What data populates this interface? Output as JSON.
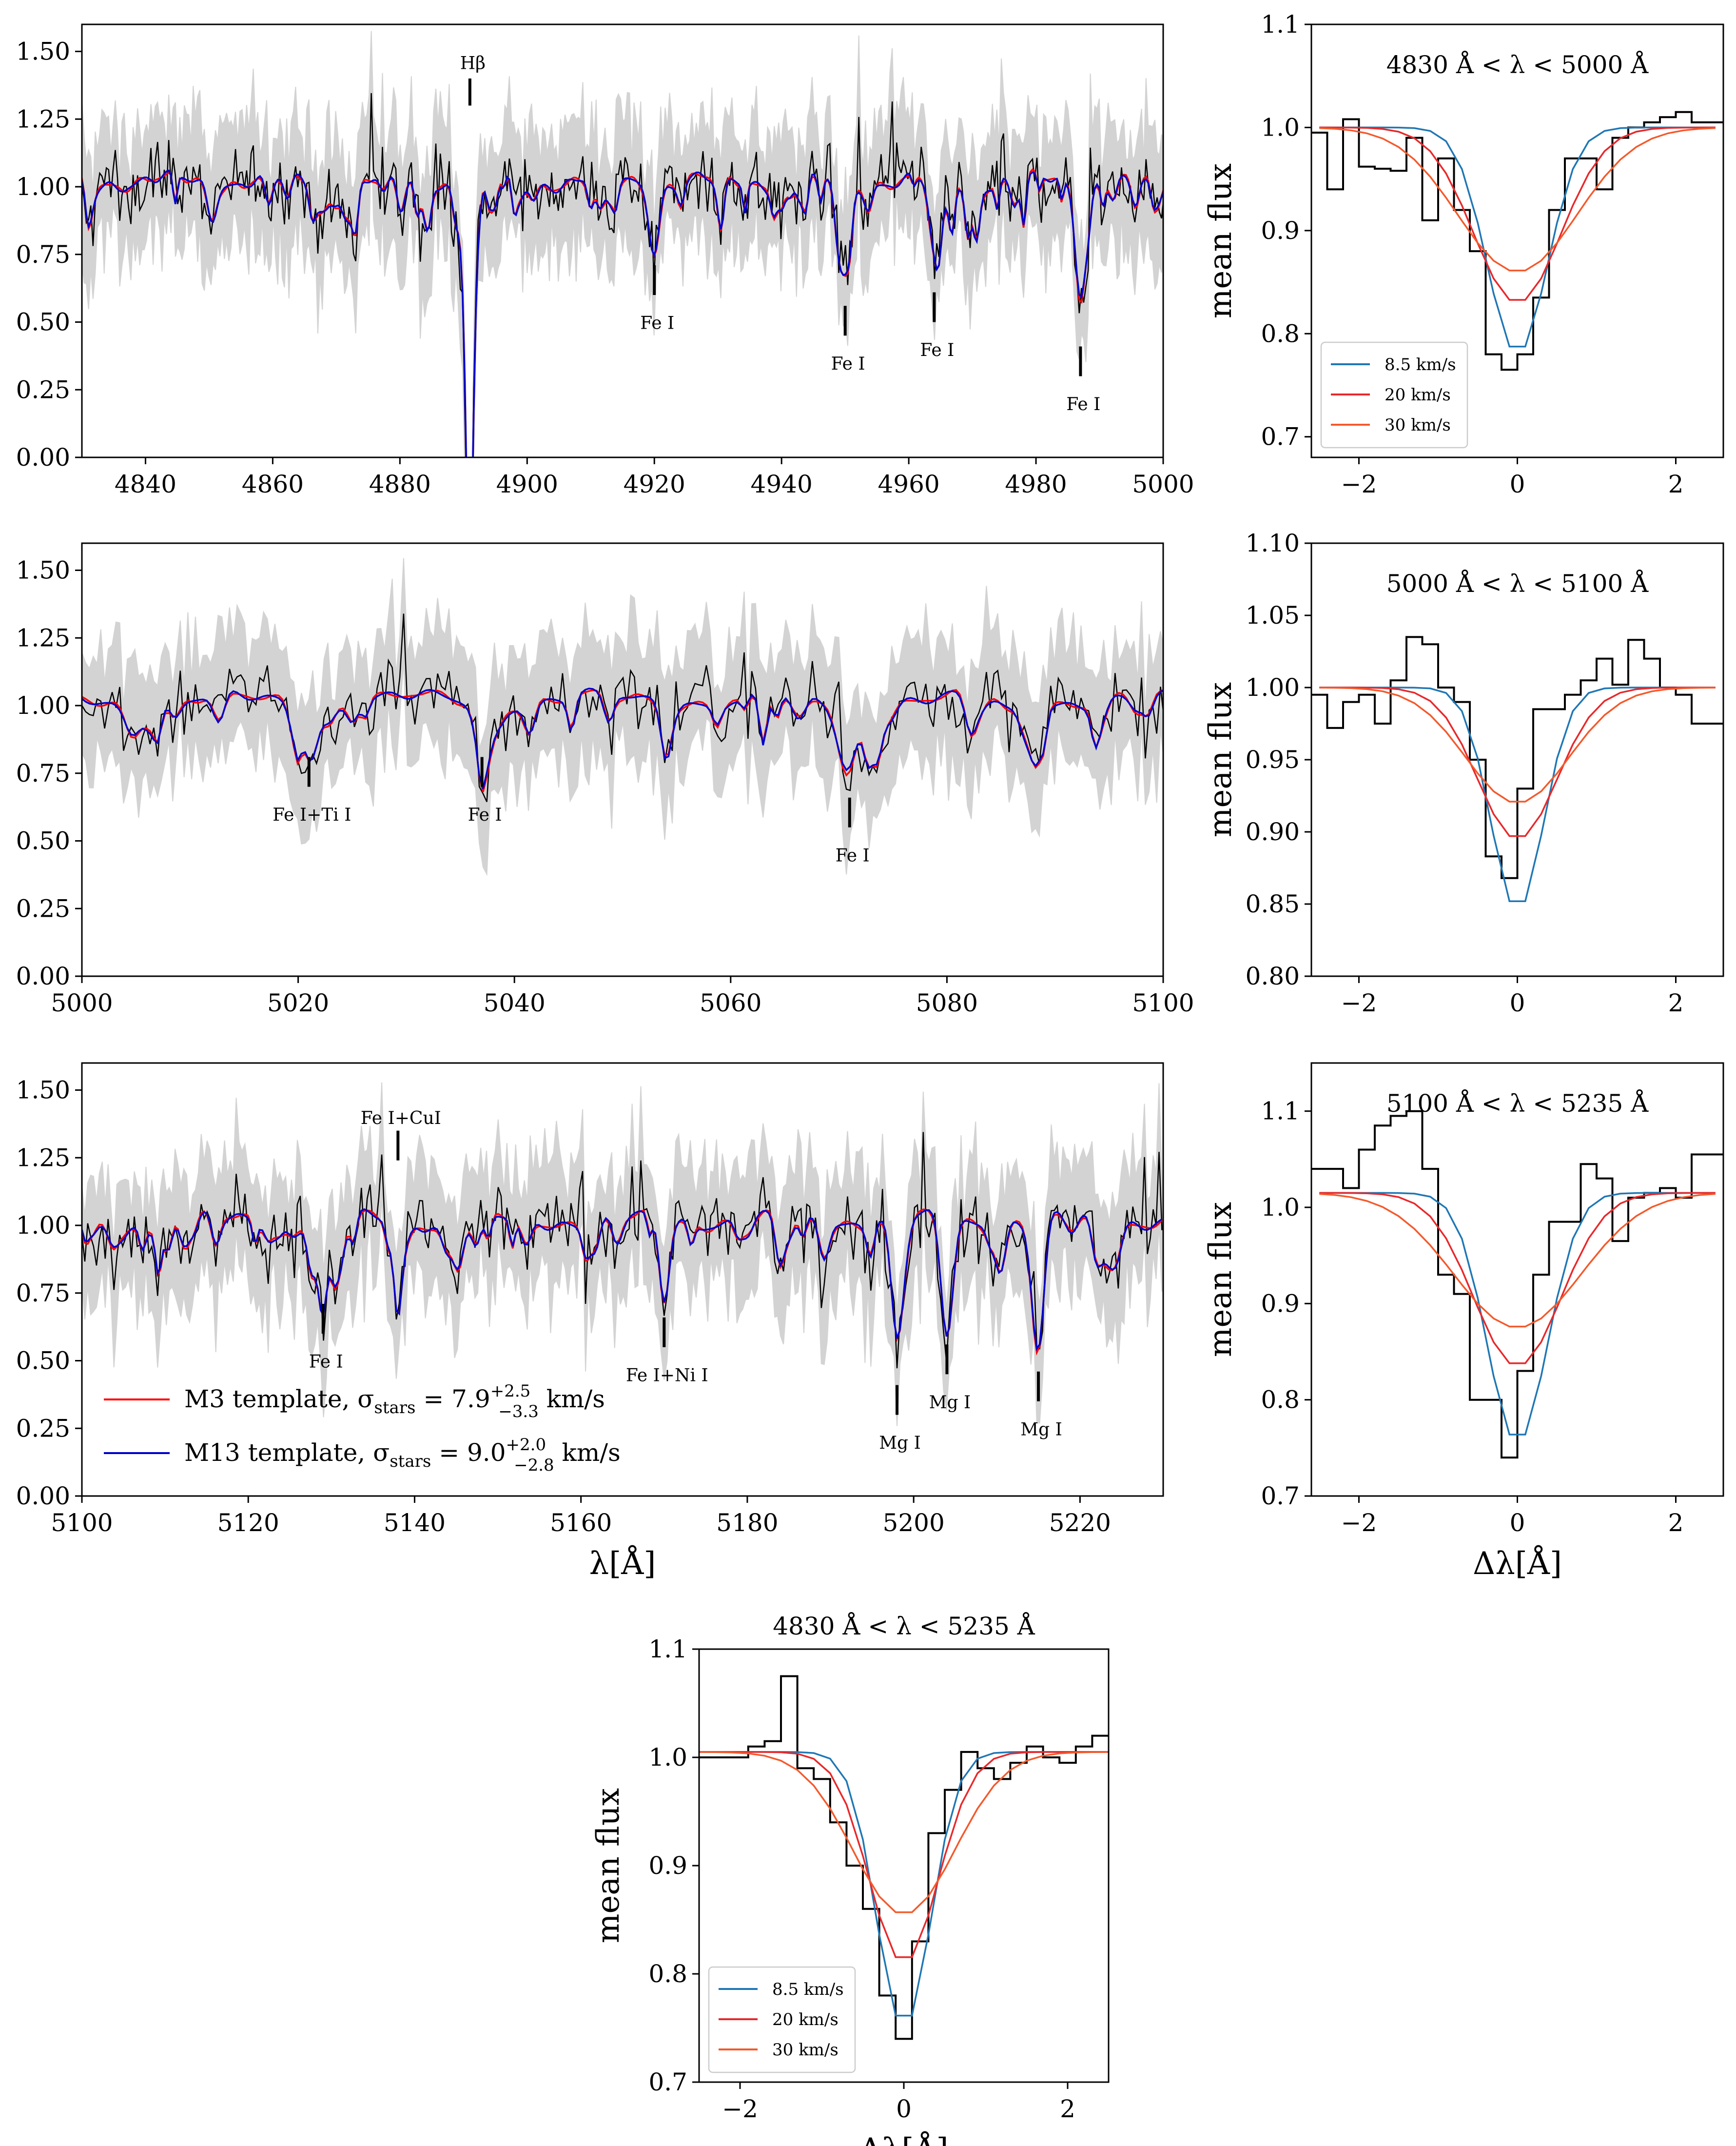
{
  "chart_data": [
    {
      "id": "spec1",
      "type": "line",
      "xlim": [
        4830,
        5000
      ],
      "ylim": [
        0,
        1.6
      ],
      "xticks": [
        4840,
        4860,
        4880,
        4900,
        4920,
        4940,
        4960,
        4980,
        5000
      ],
      "yticks": [
        0.0,
        0.25,
        0.5,
        0.75,
        1.0,
        1.25,
        1.5
      ],
      "xlabel": "",
      "lines": [
        {
          "x": 4891,
          "depth_m3": 0.78,
          "depth_m13": 0.78,
          "w": 0.9,
          "label": "Hβ",
          "label_y": 1.46,
          "tick": [
            1.3,
            1.4
          ],
          "pos": "above"
        },
        {
          "x": 4920,
          "depth_m3": 0.25,
          "depth_m13": 0.24,
          "w": 0.8,
          "label": "Fe I",
          "label_y": 0.5,
          "tick": [
            0.6,
            0.71
          ],
          "pos": "below"
        },
        {
          "x": 4950,
          "depth_m3": 0.31,
          "depth_m13": 0.3,
          "w": 0.8,
          "label": "Fe I",
          "label_y": 0.35,
          "tick": [
            0.45,
            0.56
          ],
          "pos": "below"
        },
        {
          "x": 4964,
          "depth_m3": 0.27,
          "depth_m13": 0.26,
          "w": 0.8,
          "label": "Fe I",
          "label_y": 0.4,
          "tick": [
            0.5,
            0.61
          ],
          "pos": "below"
        },
        {
          "x": 4987,
          "depth_m3": 0.41,
          "depth_m13": 0.4,
          "w": 0.8,
          "label": "Fe I",
          "label_y": 0.2,
          "tick": [
            0.3,
            0.41
          ],
          "pos": "below"
        }
      ]
    },
    {
      "id": "spec2",
      "type": "line",
      "xlim": [
        5000,
        5100
      ],
      "ylim": [
        0,
        1.6
      ],
      "xticks": [
        5000,
        5020,
        5040,
        5060,
        5080,
        5100
      ],
      "yticks": [
        0.0,
        0.25,
        0.5,
        0.75,
        1.0,
        1.25,
        1.5
      ],
      "xlabel": "",
      "lines": [
        {
          "x": 5021,
          "depth_m3": 0.16,
          "depth_m13": 0.15,
          "w": 0.6,
          "label": "Fe I+Ti I",
          "label_y": 0.6,
          "tick": [
            0.7,
            0.81
          ],
          "pos": "below"
        },
        {
          "x": 5037,
          "depth_m3": 0.2,
          "depth_m13": 0.19,
          "w": 0.6,
          "label": "Fe I",
          "label_y": 0.6,
          "tick": [
            0.7,
            0.81
          ],
          "pos": "below"
        },
        {
          "x": 5071,
          "depth_m3": 0.2,
          "depth_m13": 0.19,
          "w": 0.7,
          "label": "Fe I",
          "label_y": 0.45,
          "tick": [
            0.55,
            0.66
          ],
          "pos": "below"
        }
      ]
    },
    {
      "id": "spec3",
      "type": "line",
      "xlim": [
        5100,
        5230
      ],
      "ylim": [
        0,
        1.6
      ],
      "xticks": [
        5100,
        5120,
        5140,
        5160,
        5180,
        5200,
        5220
      ],
      "yticks": [
        0.0,
        0.25,
        0.5,
        0.75,
        1.0,
        1.25,
        1.5
      ],
      "xlabel": "λ[Å]",
      "lines": [
        {
          "x": 5129,
          "depth_m3": 0.22,
          "depth_m13": 0.21,
          "w": 0.6,
          "label": "Fe I",
          "label_y": 0.5,
          "tick": [
            0.6,
            0.71
          ],
          "pos": "below"
        },
        {
          "x": 5138,
          "depth_m3": 0.27,
          "depth_m13": 0.26,
          "w": 0.6,
          "label": "Fe I+CuI",
          "label_y": 1.4,
          "tick": [
            1.24,
            1.35
          ],
          "pos": "above"
        },
        {
          "x": 5170,
          "depth_m3": 0.3,
          "depth_m13": 0.3,
          "w": 0.6,
          "label": "Fe I+Ni I",
          "label_y": 0.45,
          "tick": [
            0.55,
            0.66
          ],
          "pos": "below"
        },
        {
          "x": 5198,
          "depth_m3": 0.45,
          "depth_m13": 0.44,
          "w": 0.7,
          "label": "Mg I",
          "label_y": 0.2,
          "tick": [
            0.3,
            0.41
          ],
          "pos": "below"
        },
        {
          "x": 5204,
          "depth_m3": 0.43,
          "depth_m13": 0.42,
          "w": 0.7,
          "label": "Mg I",
          "label_y": 0.35,
          "tick": [
            0.45,
            0.56
          ],
          "pos": "below"
        },
        {
          "x": 5215,
          "depth_m3": 0.47,
          "depth_m13": 0.46,
          "w": 0.7,
          "label": "Mg I",
          "label_y": 0.25,
          "tick": [
            0.35,
            0.46
          ],
          "pos": "below"
        }
      ],
      "legend": [
        {
          "label": "M3 template, σ_stars = 7.9 (+2.5 / −3.3) km/s",
          "color": "#ff0000",
          "main": "M3 template, σ",
          "sub": "stars",
          "val": " = 7.9",
          "sup": "+2.5",
          "inf": "−3.3",
          "unit": " km/s"
        },
        {
          "label": "M13 template, σ_stars = 9.0 (+2.0 / −2.8) km/s",
          "color": "#0000cc",
          "main": "M13 template, σ",
          "sub": "stars",
          "val": " = 9.0",
          "sup": "+2.0",
          "inf": "−2.8",
          "unit": " km/s"
        }
      ]
    },
    {
      "id": "prof1",
      "type": "line",
      "title": "4830 Å < λ < 5000 Å",
      "xlim": [
        -2.6,
        2.6
      ],
      "ylim": [
        0.68,
        1.1
      ],
      "xticks": [
        -2,
        0,
        2
      ],
      "yticks": [
        0.7,
        0.8,
        0.9,
        1.0,
        1.1
      ],
      "ylabel": "mean flux",
      "xlabel": "",
      "models": [
        {
          "name": "8.5 km/s",
          "color": "#1f77b4",
          "depth": 0.22,
          "sigma": 0.38,
          "base": 1.0
        },
        {
          "name": "20 km/s",
          "color": "#e8282b",
          "depth": 0.17,
          "sigma": 0.55,
          "base": 1.0
        },
        {
          "name": "30 km/s",
          "color": "#f4592b",
          "depth": 0.14,
          "sigma": 0.75,
          "base": 1.0
        }
      ],
      "observed_x": [
        -2.5,
        -2.3,
        -2.1,
        -1.9,
        -1.7,
        -1.5,
        -1.3,
        -1.1,
        -0.9,
        -0.7,
        -0.5,
        -0.3,
        -0.1,
        0.1,
        0.3,
        0.5,
        0.7,
        0.9,
        1.1,
        1.3,
        1.5,
        1.7,
        1.9,
        2.1,
        2.3,
        2.5
      ],
      "observed_y": [
        0.995,
        0.94,
        1.008,
        0.962,
        0.96,
        0.958,
        0.99,
        0.91,
        0.97,
        0.92,
        0.88,
        0.78,
        0.765,
        0.78,
        0.835,
        0.92,
        0.97,
        0.97,
        0.94,
        0.99,
        1.0,
        1.005,
        1.01,
        1.015,
        1.005,
        1.005
      ],
      "legend_pos": "lower-left"
    },
    {
      "id": "prof2",
      "type": "line",
      "title": "5000 Å < λ < 5100 Å",
      "xlim": [
        -2.6,
        2.6
      ],
      "ylim": [
        0.8,
        1.1
      ],
      "xticks": [
        -2,
        0,
        2
      ],
      "yticks": [
        0.8,
        0.85,
        0.9,
        0.95,
        1.0,
        1.05,
        1.1
      ],
      "ylabel": "mean flux",
      "xlabel": "",
      "models": [
        {
          "name": "8.5 km/s",
          "color": "#1f77b4",
          "depth": 0.155,
          "sigma": 0.33,
          "base": 1.0
        },
        {
          "name": "20 km/s",
          "color": "#e8282b",
          "depth": 0.105,
          "sigma": 0.5,
          "base": 1.0
        },
        {
          "name": "30 km/s",
          "color": "#f4592b",
          "depth": 0.08,
          "sigma": 0.65,
          "base": 1.0
        }
      ],
      "observed_x": [
        -2.5,
        -2.3,
        -2.1,
        -1.9,
        -1.7,
        -1.5,
        -1.3,
        -1.1,
        -0.9,
        -0.7,
        -0.5,
        -0.3,
        -0.1,
        0.1,
        0.3,
        0.5,
        0.7,
        0.9,
        1.1,
        1.3,
        1.5,
        1.7,
        1.9,
        2.1,
        2.3,
        2.5
      ],
      "observed_y": [
        0.995,
        0.972,
        0.99,
        0.995,
        0.975,
        1.005,
        1.035,
        1.03,
        1.0,
        0.99,
        0.95,
        0.883,
        0.868,
        0.93,
        0.985,
        0.985,
        0.995,
        1.005,
        1.02,
        1.002,
        1.033,
        1.02,
        1.0,
        0.995,
        0.975,
        0.975
      ],
      "legend_pos": "none"
    },
    {
      "id": "prof3",
      "type": "line",
      "title": "5100 Å < λ < 5235 Å",
      "xlim": [
        -2.6,
        2.6
      ],
      "ylim": [
        0.7,
        1.15
      ],
      "xticks": [
        -2,
        0,
        2
      ],
      "yticks": [
        0.7,
        0.8,
        0.9,
        1.0,
        1.1
      ],
      "ylabel": "mean flux",
      "xlabel": "Δλ[Å]",
      "models": [
        {
          "name": "8.5 km/s",
          "color": "#1f77b4",
          "depth": 0.26,
          "sigma": 0.38,
          "base": 1.015
        },
        {
          "name": "20 km/s",
          "color": "#e8282b",
          "depth": 0.18,
          "sigma": 0.55,
          "base": 1.015
        },
        {
          "name": "30 km/s",
          "color": "#f4592b",
          "depth": 0.14,
          "sigma": 0.8,
          "base": 1.015
        }
      ],
      "observed_x": [
        -2.5,
        -2.3,
        -2.1,
        -1.9,
        -1.7,
        -1.5,
        -1.3,
        -1.1,
        -0.9,
        -0.7,
        -0.5,
        -0.3,
        -0.1,
        0.1,
        0.3,
        0.5,
        0.7,
        0.9,
        1.1,
        1.3,
        1.5,
        1.7,
        1.9,
        2.1,
        2.3,
        2.5
      ],
      "observed_y": [
        1.04,
        1.04,
        1.02,
        1.06,
        1.085,
        1.095,
        1.1,
        1.04,
        0.93,
        0.91,
        0.8,
        0.8,
        0.74,
        0.83,
        0.93,
        0.985,
        0.985,
        1.045,
        1.03,
        0.965,
        1.01,
        1.015,
        1.02,
        1.01,
        1.055,
        1.055
      ],
      "legend_pos": "none"
    },
    {
      "id": "prof4",
      "type": "line",
      "title": "4830 Å < λ < 5235 Å",
      "xlim": [
        -2.5,
        2.5
      ],
      "ylim": [
        0.7,
        1.1
      ],
      "xticks": [
        -2,
        0,
        2
      ],
      "yticks": [
        0.7,
        0.8,
        0.9,
        1.0,
        1.1
      ],
      "ylabel": "mean flux",
      "xlabel": "Δλ[Å]",
      "models": [
        {
          "name": "8.5 km/s",
          "color": "#1f77b4",
          "depth": 0.255,
          "sigma": 0.33,
          "base": 1.005
        },
        {
          "name": "20 km/s",
          "color": "#e8282b",
          "depth": 0.195,
          "sigma": 0.42,
          "base": 1.005
        },
        {
          "name": "30 km/s",
          "color": "#f4592b",
          "depth": 0.15,
          "sigma": 0.62,
          "base": 1.005
        }
      ],
      "observed_x": [
        -2.4,
        -2.2,
        -2.0,
        -1.8,
        -1.6,
        -1.4,
        -1.2,
        -1.0,
        -0.8,
        -0.6,
        -0.4,
        -0.2,
        0.0,
        0.2,
        0.4,
        0.6,
        0.8,
        1.0,
        1.2,
        1.4,
        1.6,
        1.8,
        2.0,
        2.2,
        2.4
      ],
      "observed_y": [
        1.0,
        1.0,
        1.0,
        1.01,
        1.015,
        1.075,
        0.99,
        0.98,
        0.94,
        0.9,
        0.86,
        0.78,
        0.74,
        0.83,
        0.93,
        0.97,
        1.005,
        0.99,
        0.98,
        0.995,
        1.01,
        1.0,
        0.995,
        1.01,
        1.02
      ],
      "legend_pos": "lower-left"
    }
  ]
}
